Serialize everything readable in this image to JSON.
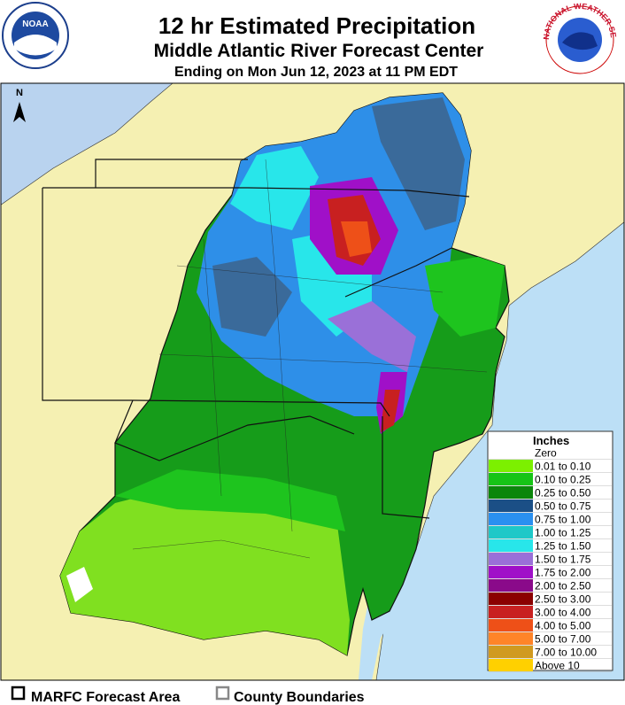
{
  "header": {
    "title": "12 hr Estimated Precipitation",
    "subtitle": "Middle Atlantic River Forecast Center",
    "ending": "Ending on Mon Jun 12, 2023 at 11 PM EDT",
    "left_logo": "NOAA",
    "right_logo": "NATIONAL WEATHER SERVICE"
  },
  "map": {
    "north_label": "N"
  },
  "legend": {
    "title": "Inches",
    "entries": [
      {
        "label": "Zero",
        "color": "#ffffff"
      },
      {
        "label": "0.01 to 0.10",
        "color": "#7cf000"
      },
      {
        "label": "0.10 to 0.25",
        "color": "#16c416"
      },
      {
        "label": "0.25 to 0.50",
        "color": "#0b860b"
      },
      {
        "label": "0.50 to 0.75",
        "color": "#1b4f86"
      },
      {
        "label": "0.75 to 1.00",
        "color": "#2a90f0"
      },
      {
        "label": "1.00 to 1.25",
        "color": "#1ec8c8"
      },
      {
        "label": "1.25 to 1.50",
        "color": "#28e6ea"
      },
      {
        "label": "1.50 to 1.75",
        "color": "#9a70d8"
      },
      {
        "label": "1.75 to 2.00",
        "color": "#a010c8"
      },
      {
        "label": "2.00 to 2.50",
        "color": "#8a0a8a"
      },
      {
        "label": "2.50 to 3.00",
        "color": "#8b0000"
      },
      {
        "label": "3.00 to 4.00",
        "color": "#c82020"
      },
      {
        "label": "4.00 to 5.00",
        "color": "#ee5018"
      },
      {
        "label": "5.00 to 7.00",
        "color": "#ff8428"
      },
      {
        "label": "7.00 to 10.00",
        "color": "#d09a20"
      },
      {
        "label": "Above 10",
        "color": "#ffd000"
      }
    ]
  },
  "footer": {
    "forecast_area": "MARFC Forecast Area",
    "county_boundaries": "County Boundaries"
  }
}
